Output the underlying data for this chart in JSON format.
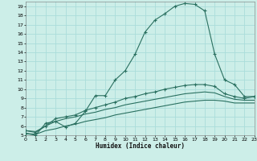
{
  "xlabel": "Humidex (Indice chaleur)",
  "background_color": "#cceee8",
  "grid_color": "#aaddda",
  "line_color": "#2a7060",
  "xlim": [
    0,
    23
  ],
  "ylim": [
    5,
    19.5
  ],
  "xticks": [
    0,
    1,
    2,
    3,
    4,
    5,
    6,
    7,
    8,
    9,
    10,
    11,
    12,
    13,
    14,
    15,
    16,
    17,
    18,
    19,
    20,
    21,
    22,
    23
  ],
  "yticks": [
    5,
    6,
    7,
    8,
    9,
    10,
    11,
    12,
    13,
    14,
    15,
    16,
    17,
    18,
    19
  ],
  "line1_x": [
    0,
    1,
    2,
    3,
    4,
    5,
    6,
    7,
    8,
    9,
    10,
    11,
    12,
    13,
    14,
    15,
    16,
    17,
    18,
    19,
    20,
    21,
    22,
    23
  ],
  "line1_y": [
    5.2,
    5.0,
    6.3,
    6.5,
    5.9,
    6.3,
    7.6,
    9.3,
    9.3,
    11.0,
    12.0,
    13.8,
    16.2,
    17.5,
    18.2,
    19.0,
    19.3,
    19.2,
    18.5,
    13.8,
    11.0,
    10.5,
    9.2,
    9.2
  ],
  "line2_x": [
    0,
    1,
    2,
    3,
    4,
    5,
    6,
    7,
    8,
    9,
    10,
    11,
    12,
    13,
    14,
    15,
    16,
    17,
    18,
    19,
    20,
    21,
    22,
    23
  ],
  "line2_y": [
    5.5,
    5.3,
    6.0,
    6.8,
    7.0,
    7.2,
    7.7,
    8.0,
    8.3,
    8.6,
    9.0,
    9.2,
    9.5,
    9.7,
    10.0,
    10.2,
    10.4,
    10.5,
    10.5,
    10.3,
    9.5,
    9.2,
    9.0,
    9.2
  ],
  "line3_x": [
    0,
    1,
    2,
    3,
    4,
    5,
    6,
    7,
    8,
    9,
    10,
    11,
    12,
    13,
    14,
    15,
    16,
    17,
    18,
    19,
    20,
    21,
    22,
    23
  ],
  "line3_y": [
    5.5,
    5.4,
    6.0,
    6.5,
    6.8,
    7.0,
    7.3,
    7.5,
    7.8,
    8.0,
    8.3,
    8.5,
    8.7,
    8.9,
    9.1,
    9.3,
    9.5,
    9.6,
    9.7,
    9.6,
    9.2,
    8.9,
    8.8,
    8.8
  ],
  "line4_x": [
    0,
    1,
    2,
    3,
    4,
    5,
    6,
    7,
    8,
    9,
    10,
    11,
    12,
    13,
    14,
    15,
    16,
    17,
    18,
    19,
    20,
    21,
    22,
    23
  ],
  "line4_y": [
    5.2,
    5.1,
    5.5,
    5.7,
    6.0,
    6.2,
    6.5,
    6.7,
    6.9,
    7.2,
    7.4,
    7.6,
    7.8,
    8.0,
    8.2,
    8.4,
    8.6,
    8.7,
    8.8,
    8.8,
    8.7,
    8.5,
    8.5,
    8.5
  ]
}
